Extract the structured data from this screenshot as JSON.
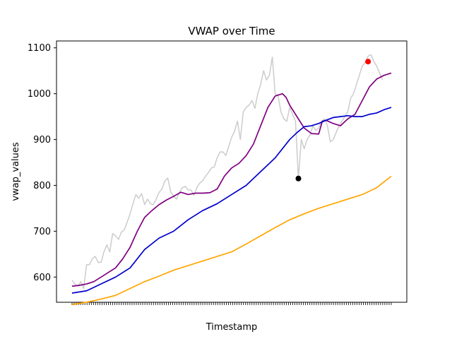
{
  "chart_data": {
    "type": "line",
    "title": "VWAP over Time",
    "xlabel": "Timestamp",
    "ylabel": "vwap_values",
    "ylim": [
      545,
      1115
    ],
    "yticks": [
      600,
      700,
      800,
      900,
      1000,
      1100
    ],
    "ytick_labels": [
      "600",
      "700",
      "800",
      "900",
      "1000",
      "1100"
    ],
    "n_points": 150,
    "grid": false,
    "series": [
      {
        "color": "#cccccc",
        "points": [
          [
            0,
            593
          ],
          [
            4,
            585
          ],
          [
            8,
            580
          ],
          [
            12,
            590
          ],
          [
            16,
            575
          ],
          [
            20,
            627
          ],
          [
            24,
            627
          ],
          [
            28,
            640
          ],
          [
            32,
            645
          ],
          [
            36,
            632
          ],
          [
            40,
            632
          ],
          [
            44,
            655
          ],
          [
            48,
            670
          ],
          [
            52,
            655
          ],
          [
            56,
            695
          ],
          [
            60,
            690
          ],
          [
            64,
            682
          ],
          [
            68,
            698
          ],
          [
            72,
            703
          ],
          [
            76,
            720
          ],
          [
            80,
            738
          ],
          [
            84,
            760
          ],
          [
            88,
            780
          ],
          [
            92,
            772
          ],
          [
            96,
            782
          ],
          [
            100,
            758
          ],
          [
            104,
            770
          ],
          [
            108,
            760
          ],
          [
            112,
            758
          ],
          [
            116,
            770
          ],
          [
            120,
            785
          ],
          [
            124,
            792
          ],
          [
            128,
            810
          ],
          [
            132,
            816
          ],
          [
            136,
            786
          ],
          [
            140,
            776
          ],
          [
            144,
            770
          ],
          [
            148,
            785
          ],
          [
            152,
            795
          ],
          [
            156,
            798
          ],
          [
            160,
            790
          ],
          [
            164,
            790
          ],
          [
            168,
            778
          ],
          [
            172,
            795
          ],
          [
            176,
            805
          ],
          [
            180,
            810
          ],
          [
            184,
            820
          ],
          [
            188,
            828
          ],
          [
            192,
            838
          ],
          [
            196,
            840
          ],
          [
            200,
            860
          ],
          [
            204,
            873
          ],
          [
            208,
            873
          ],
          [
            212,
            865
          ],
          [
            216,
            885
          ],
          [
            220,
            905
          ],
          [
            224,
            918
          ],
          [
            228,
            940
          ],
          [
            232,
            900
          ],
          [
            236,
            960
          ],
          [
            240,
            970
          ],
          [
            244,
            975
          ],
          [
            248,
            985
          ],
          [
            252,
            968
          ],
          [
            256,
            1000
          ],
          [
            260,
            1020
          ],
          [
            264,
            1050
          ],
          [
            268,
            1030
          ],
          [
            272,
            1040
          ],
          [
            276,
            1080
          ],
          [
            280,
            1000
          ],
          [
            284,
            995
          ],
          [
            288,
            960
          ],
          [
            292,
            945
          ],
          [
            296,
            940
          ],
          [
            300,
            970
          ],
          [
            304,
            955
          ],
          [
            308,
            940
          ],
          [
            312,
            815
          ],
          [
            316,
            900
          ],
          [
            320,
            880
          ],
          [
            324,
            900
          ],
          [
            328,
            910
          ],
          [
            332,
            930
          ],
          [
            336,
            920
          ],
          [
            340,
            925
          ],
          [
            344,
            940
          ],
          [
            348,
            945
          ],
          [
            352,
            930
          ],
          [
            356,
            895
          ],
          [
            360,
            900
          ],
          [
            364,
            915
          ],
          [
            368,
            930
          ],
          [
            372,
            940
          ],
          [
            376,
            950
          ],
          [
            380,
            960
          ],
          [
            384,
            990
          ],
          [
            388,
            1000
          ],
          [
            392,
            1020
          ],
          [
            396,
            1040
          ],
          [
            400,
            1060
          ],
          [
            404,
            1068
          ],
          [
            408,
            1082
          ],
          [
            412,
            1085
          ],
          [
            416,
            1070
          ],
          [
            420,
            1060
          ],
          [
            424,
            1045
          ],
          [
            428,
            1030
          ]
        ]
      },
      {
        "color": "#800080",
        "points": [
          [
            0,
            580
          ],
          [
            10,
            582
          ],
          [
            20,
            585
          ],
          [
            30,
            590
          ],
          [
            40,
            600
          ],
          [
            50,
            610
          ],
          [
            60,
            620
          ],
          [
            70,
            640
          ],
          [
            80,
            665
          ],
          [
            90,
            700
          ],
          [
            100,
            730
          ],
          [
            110,
            745
          ],
          [
            120,
            758
          ],
          [
            130,
            768
          ],
          [
            140,
            776
          ],
          [
            150,
            785
          ],
          [
            160,
            780
          ],
          [
            170,
            783
          ],
          [
            180,
            783
          ],
          [
            190,
            784
          ],
          [
            200,
            792
          ],
          [
            210,
            820
          ],
          [
            220,
            838
          ],
          [
            230,
            848
          ],
          [
            240,
            865
          ],
          [
            250,
            890
          ],
          [
            260,
            930
          ],
          [
            270,
            970
          ],
          [
            280,
            995
          ],
          [
            290,
            1000
          ],
          [
            295,
            992
          ],
          [
            300,
            975
          ],
          [
            310,
            950
          ],
          [
            320,
            925
          ],
          [
            330,
            913
          ],
          [
            340,
            912
          ],
          [
            345,
            940
          ],
          [
            350,
            942
          ],
          [
            360,
            935
          ],
          [
            370,
            930
          ],
          [
            380,
            945
          ],
          [
            390,
            955
          ],
          [
            400,
            985
          ],
          [
            410,
            1015
          ],
          [
            420,
            1032
          ],
          [
            430,
            1040
          ],
          [
            440,
            1045
          ]
        ]
      },
      {
        "color": "#0000cd",
        "points": [
          [
            0,
            565
          ],
          [
            20,
            570
          ],
          [
            40,
            585
          ],
          [
            60,
            600
          ],
          [
            80,
            620
          ],
          [
            100,
            660
          ],
          [
            120,
            685
          ],
          [
            140,
            700
          ],
          [
            160,
            725
          ],
          [
            180,
            745
          ],
          [
            200,
            760
          ],
          [
            220,
            780
          ],
          [
            240,
            800
          ],
          [
            260,
            830
          ],
          [
            280,
            860
          ],
          [
            300,
            900
          ],
          [
            310,
            915
          ],
          [
            320,
            928
          ],
          [
            330,
            930
          ],
          [
            340,
            935
          ],
          [
            350,
            942
          ],
          [
            360,
            948
          ],
          [
            370,
            950
          ],
          [
            380,
            952
          ],
          [
            390,
            950
          ],
          [
            400,
            950
          ],
          [
            410,
            955
          ],
          [
            420,
            958
          ],
          [
            430,
            965
          ],
          [
            440,
            970
          ]
        ]
      },
      {
        "color": "#ffa500",
        "points": [
          [
            0,
            540
          ],
          [
            20,
            545
          ],
          [
            40,
            552
          ],
          [
            60,
            560
          ],
          [
            80,
            575
          ],
          [
            100,
            590
          ],
          [
            120,
            602
          ],
          [
            140,
            615
          ],
          [
            160,
            625
          ],
          [
            180,
            635
          ],
          [
            200,
            645
          ],
          [
            220,
            655
          ],
          [
            240,
            672
          ],
          [
            260,
            690
          ],
          [
            280,
            708
          ],
          [
            300,
            725
          ],
          [
            320,
            738
          ],
          [
            340,
            750
          ],
          [
            360,
            760
          ],
          [
            380,
            770
          ],
          [
            400,
            780
          ],
          [
            420,
            795
          ],
          [
            440,
            820
          ]
        ]
      }
    ],
    "markers": [
      {
        "x": 312,
        "y": 815,
        "color": "#000000"
      },
      {
        "x": 408,
        "y": 1070,
        "color": "#ff0000"
      }
    ]
  }
}
